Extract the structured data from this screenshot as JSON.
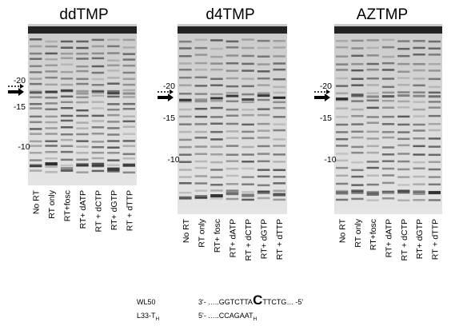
{
  "panels": [
    {
      "title": "ddTMP",
      "markers": [
        "-20",
        "-15",
        "-10"
      ],
      "lanes": [
        "No RT",
        "RT only",
        "RT+fosc",
        "RT+ dATP",
        "RT + dCTP",
        "RT+ dGTP",
        "RT + dTTP"
      ]
    },
    {
      "title": "d4TMP",
      "markers": [
        "-20",
        "-15",
        "-10"
      ],
      "lanes": [
        "No RT",
        "RT only",
        "RT+ fosc",
        "RT+ dATP",
        "RT + dCTP",
        "RT+ dGTP",
        "RT + dTTP"
      ]
    },
    {
      "title": "AZTMP",
      "markers": [
        "-20",
        "-15",
        "-10"
      ],
      "lanes": [
        "No RT",
        "RT only",
        "RT+fosc",
        "RT+ dATP",
        "RT + dCTP",
        "RT+ dGTP",
        "RT + dTTP"
      ]
    }
  ],
  "sequences": [
    {
      "name": "WL50",
      "prefix": "3'-",
      "seq": "…..GGTCTTA",
      "highlight": "C",
      "rest": "TTCTG…",
      "suffix": "-5'"
    },
    {
      "name": "L33-T",
      "name_sub": "H",
      "prefix": "5'-",
      "seq": "…..CCAGAAT",
      "sub": "H"
    }
  ]
}
